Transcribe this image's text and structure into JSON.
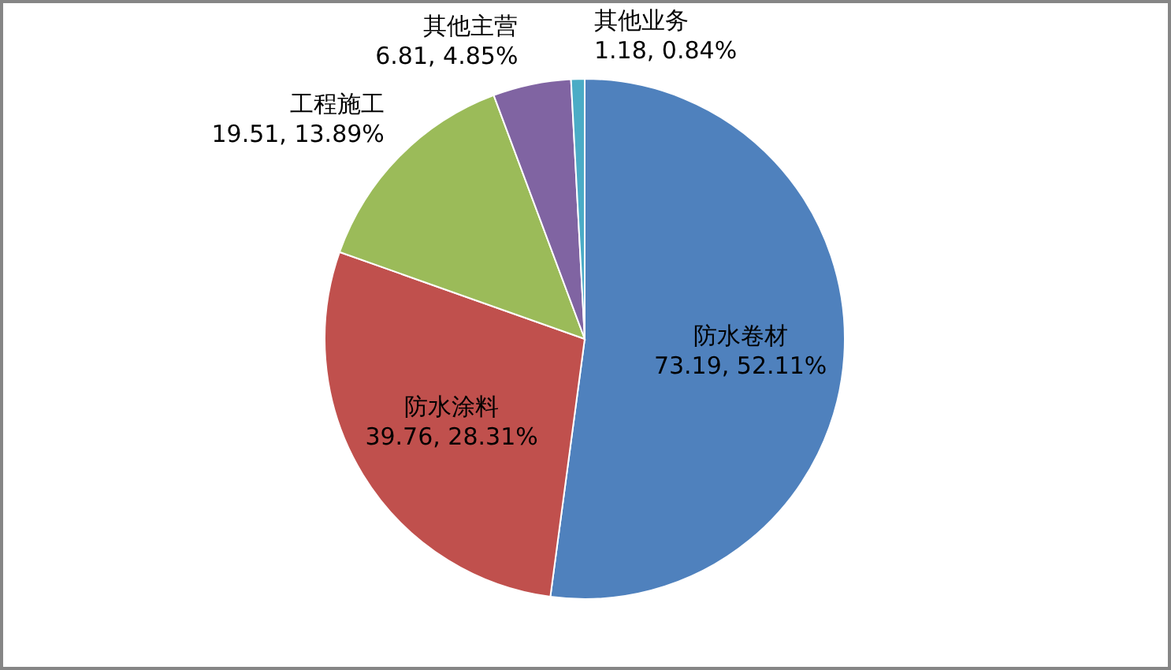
{
  "chart_data": {
    "type": "pie",
    "categories": [
      "防水卷材",
      "防水涂料",
      "工程施工",
      "其他主营",
      "其他业务"
    ],
    "values": [
      73.19,
      39.76,
      19.51,
      6.81,
      1.18
    ],
    "value_labels": [
      "73.19, 52.11%",
      "39.76, 28.31%",
      "19.51, 13.89%",
      "6.81, 4.85%",
      "1.18, 0.84%"
    ],
    "colors": [
      "#4f81bd",
      "#c0504d",
      "#9bbb59",
      "#8064a2",
      "#4bacc6"
    ],
    "legend": false
  }
}
